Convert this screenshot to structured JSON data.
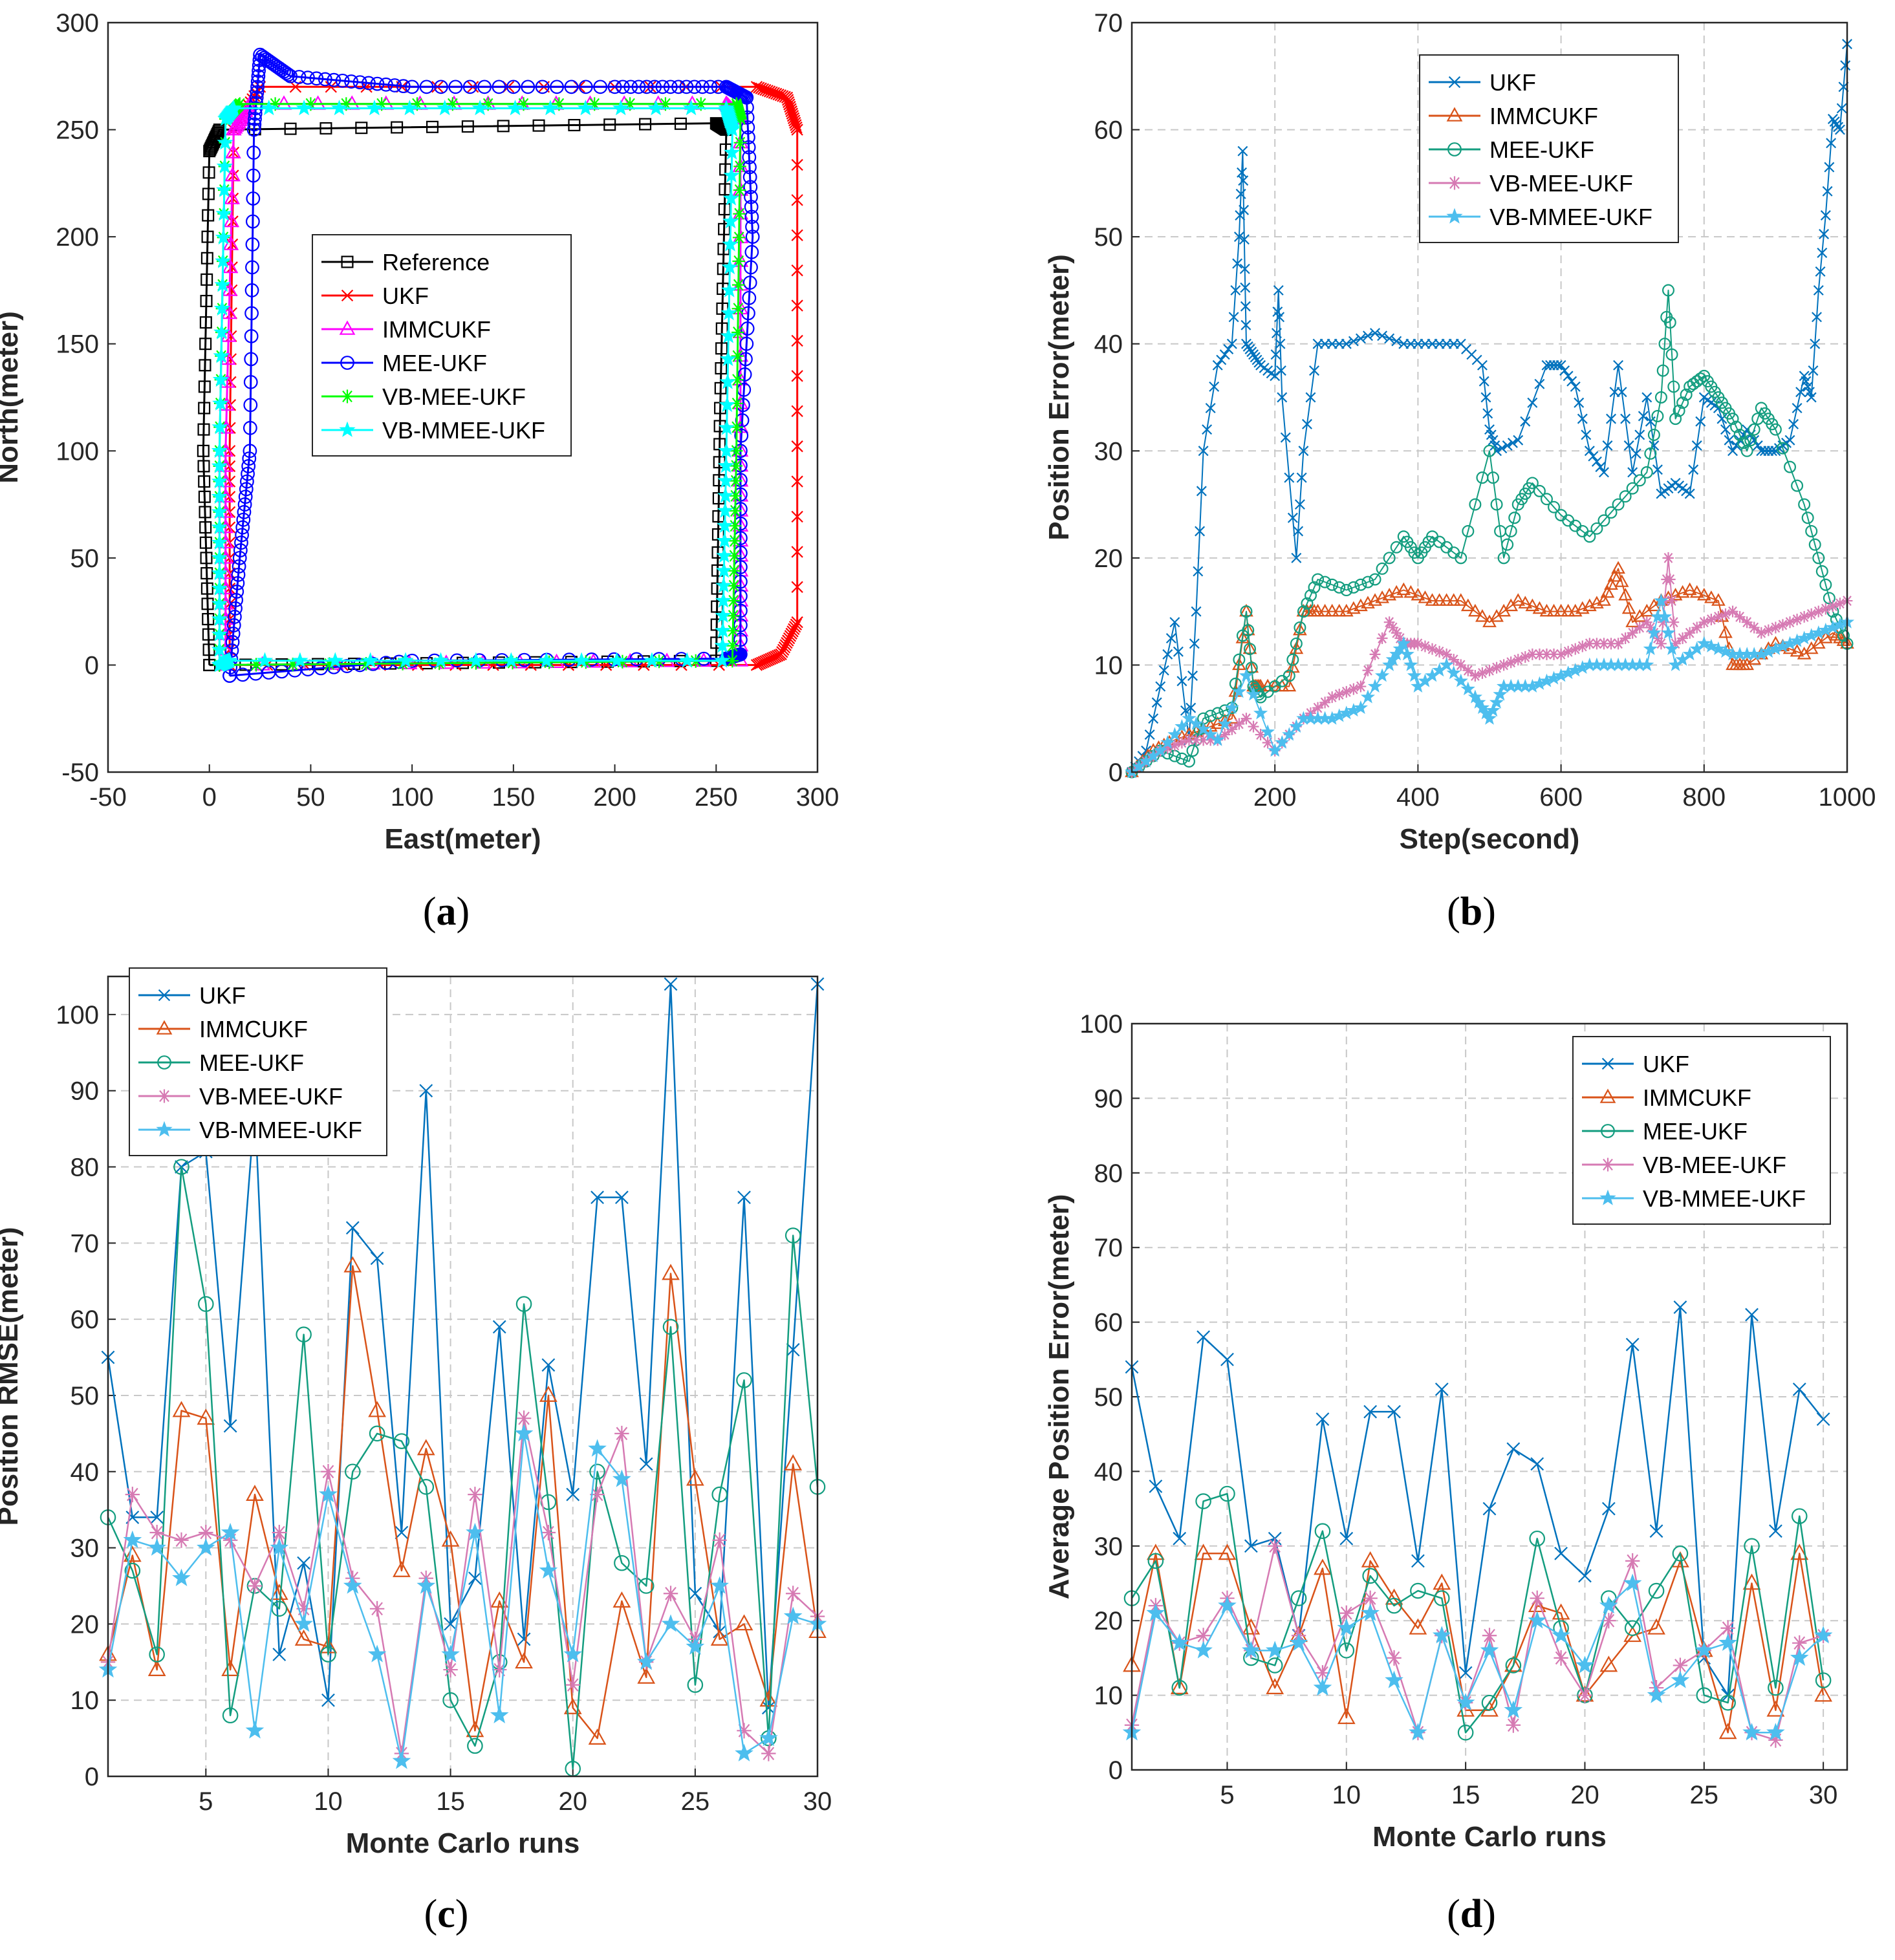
{
  "chart_data": [
    {
      "type": "line",
      "panel": "a",
      "xlabel": "East(meter)",
      "ylabel": "North(meter)",
      "xlim": [
        -50,
        300
      ],
      "ylim": [
        -50,
        300
      ],
      "xticks": [
        -50,
        0,
        50,
        100,
        150,
        200,
        250,
        300
      ],
      "yticks": [
        -50,
        0,
        50,
        100,
        150,
        200,
        250,
        300
      ],
      "grid": false,
      "legend_position": "center",
      "series": [
        {
          "name": "Reference",
          "color": "#000000",
          "marker": "square",
          "x": [
            0,
            -3,
            0,
            5,
            250,
            255,
            252,
            250,
            0
          ],
          "y": [
            0,
            100,
            240,
            250,
            253,
            250,
            120,
            2,
            0
          ]
        },
        {
          "name": "UKF",
          "color": "#ff0000",
          "marker": "x",
          "x": [
            10,
            10,
            12,
            25,
            270,
            285,
            290,
            290,
            282,
            270,
            10
          ],
          "y": [
            0,
            100,
            250,
            270,
            270,
            265,
            250,
            20,
            5,
            0,
            0
          ]
        },
        {
          "name": "IMMCUKF",
          "color": "#ff00ff",
          "marker": "triangle",
          "x": [
            8,
            8,
            12,
            20,
            255,
            262,
            262,
            262,
            8
          ],
          "y": [
            0,
            100,
            250,
            262,
            262,
            255,
            100,
            2,
            0
          ]
        },
        {
          "name": "MEE-UKF",
          "color": "#0000ff",
          "marker": "circle",
          "x": [
            10,
            15,
            20,
            22,
            25,
            40,
            100,
            200,
            255,
            265,
            268,
            262,
            262,
            255,
            100,
            10
          ],
          "y": [
            -5,
            50,
            100,
            250,
            285,
            275,
            270,
            270,
            270,
            265,
            200,
            100,
            5,
            3,
            2,
            -5
          ]
        },
        {
          "name": "VB-MEE-UKF",
          "color": "#00ff00",
          "marker": "star6",
          "x": [
            5,
            5,
            8,
            15,
            260,
            262,
            260,
            258,
            5
          ],
          "y": [
            0,
            100,
            255,
            262,
            262,
            255,
            100,
            2,
            0
          ]
        },
        {
          "name": "VB-MMEE-UKF",
          "color": "#00ffff",
          "marker": "pentagram",
          "x": [
            5,
            5,
            8,
            12,
            255,
            258,
            255,
            253,
            10,
            5
          ],
          "y": [
            0,
            100,
            255,
            260,
            260,
            250,
            100,
            2,
            2,
            0
          ]
        }
      ]
    },
    {
      "type": "line",
      "panel": "b",
      "xlabel": "Step(second)",
      "ylabel": "Position Error(meter)",
      "xlim": [
        0,
        1000
      ],
      "ylim": [
        0,
        70
      ],
      "xticks": [
        200,
        400,
        600,
        800,
        1000
      ],
      "yticks": [
        0,
        10,
        20,
        30,
        40,
        50,
        60,
        70
      ],
      "grid": true,
      "legend_position": "top-center",
      "series": [
        {
          "name": "UKF",
          "color": "#0072bd",
          "marker": "x",
          "x": [
            0,
            20,
            40,
            60,
            80,
            90,
            100,
            120,
            140,
            150,
            155,
            158,
            160,
            170,
            180,
            200,
            205,
            210,
            230,
            240,
            260,
            300,
            340,
            380,
            420,
            460,
            490,
            500,
            510,
            540,
            580,
            600,
            620,
            640,
            660,
            680,
            700,
            720,
            740,
            760,
            780,
            800,
            820,
            840,
            860,
            880,
            900,
            920,
            940,
            950,
            960,
            970,
            980,
            990,
            1000
          ],
          "y": [
            0,
            2,
            8,
            14,
            3,
            15,
            30,
            38,
            40,
            50,
            58,
            47,
            40,
            39,
            38,
            37,
            45,
            35,
            20,
            30,
            40,
            40,
            41,
            40,
            40,
            40,
            38,
            32,
            30,
            31,
            38,
            38,
            36,
            30,
            28,
            38,
            28,
            35,
            26,
            27,
            26,
            35,
            34,
            30,
            32,
            30,
            30,
            31,
            37,
            35,
            45,
            52,
            61,
            60,
            68
          ]
        },
        {
          "name": "IMMCUKF",
          "color": "#d95319",
          "marker": "triangle",
          "x": [
            0,
            30,
            60,
            100,
            140,
            160,
            170,
            180,
            220,
            240,
            260,
            300,
            340,
            380,
            420,
            460,
            500,
            540,
            580,
            620,
            660,
            680,
            700,
            740,
            780,
            820,
            840,
            860,
            900,
            940,
            980,
            1000
          ],
          "y": [
            0,
            2,
            3,
            4,
            5,
            15,
            8,
            8,
            8,
            15,
            15,
            15,
            16,
            17,
            16,
            16,
            14,
            16,
            15,
            15,
            16,
            19,
            14,
            16,
            17,
            16,
            10,
            10,
            12,
            11,
            13,
            12
          ]
        },
        {
          "name": "MEE-UKF",
          "color": "#139d7f",
          "marker": "circle",
          "x": [
            0,
            40,
            80,
            100,
            140,
            160,
            170,
            180,
            220,
            240,
            260,
            300,
            340,
            380,
            400,
            420,
            460,
            500,
            520,
            540,
            560,
            600,
            640,
            680,
            720,
            740,
            750,
            760,
            780,
            800,
            820,
            840,
            860,
            880,
            900,
            940,
            960,
            980,
            1000
          ],
          "y": [
            0,
            2,
            1,
            5,
            6,
            15,
            8,
            7,
            9,
            15,
            18,
            17,
            18,
            22,
            20,
            22,
            20,
            30,
            20,
            25,
            27,
            24,
            22,
            25,
            28,
            35,
            45,
            33,
            36,
            37,
            35,
            33,
            30,
            34,
            32,
            25,
            20,
            15,
            12
          ]
        },
        {
          "name": "VB-MEE-UKF",
          "color": "#d67ab3",
          "marker": "star6",
          "x": [
            0,
            40,
            80,
            120,
            160,
            200,
            240,
            280,
            320,
            360,
            380,
            400,
            440,
            480,
            520,
            560,
            600,
            640,
            680,
            720,
            740,
            750,
            760,
            800,
            840,
            880,
            920,
            960,
            1000
          ],
          "y": [
            0,
            2,
            3,
            3,
            5,
            2,
            5,
            7,
            8,
            14,
            12,
            12,
            11,
            9,
            10,
            11,
            11,
            12,
            12,
            14,
            12,
            20,
            12,
            14,
            15,
            13,
            14,
            15,
            16
          ]
        },
        {
          "name": "VB-MMEE-UKF",
          "color": "#4dbeee",
          "marker": "pentagram",
          "x": [
            0,
            40,
            80,
            120,
            160,
            200,
            240,
            280,
            320,
            360,
            380,
            400,
            440,
            480,
            500,
            520,
            560,
            600,
            640,
            680,
            720,
            740,
            760,
            800,
            840,
            880,
            920,
            960,
            1000
          ],
          "y": [
            0,
            2,
            5,
            3,
            9,
            2,
            5,
            5,
            6,
            10,
            12,
            8,
            10,
            7,
            5,
            8,
            8,
            9,
            10,
            10,
            10,
            16,
            10,
            12,
            11,
            11,
            12,
            13,
            14
          ]
        }
      ]
    },
    {
      "type": "line",
      "panel": "c",
      "xlabel": "Monte Carlo runs",
      "ylabel": "Position RMSE(meter)",
      "xlim": [
        1,
        30
      ],
      "ylim": [
        0,
        105
      ],
      "xticks": [
        5,
        10,
        15,
        20,
        25,
        30
      ],
      "yticks": [
        0,
        10,
        20,
        30,
        40,
        50,
        60,
        70,
        80,
        90,
        100
      ],
      "grid": true,
      "legend_position": "top-left",
      "x": [
        1,
        2,
        3,
        4,
        5,
        6,
        7,
        8,
        9,
        10,
        11,
        12,
        13,
        14,
        15,
        16,
        17,
        18,
        19,
        20,
        21,
        22,
        23,
        24,
        25,
        26,
        27,
        28,
        29,
        30
      ],
      "series": [
        {
          "name": "UKF",
          "color": "#0072bd",
          "marker": "x",
          "values": [
            55,
            34,
            34,
            80,
            82,
            46,
            88,
            16,
            28,
            10,
            72,
            68,
            32,
            90,
            20,
            26,
            59,
            18,
            54,
            37,
            76,
            76,
            41,
            104,
            24,
            19,
            76,
            9,
            56,
            104
          ]
        },
        {
          "name": "IMMCUKF",
          "color": "#d95319",
          "marker": "triangle",
          "values": [
            16,
            29,
            14,
            48,
            47,
            14,
            37,
            24,
            18,
            17,
            67,
            48,
            27,
            43,
            31,
            6,
            23,
            15,
            50,
            9,
            5,
            23,
            13,
            66,
            39,
            18,
            20,
            10,
            41,
            19
          ]
        },
        {
          "name": "MEE-UKF",
          "color": "#139d7f",
          "marker": "circle",
          "values": [
            34,
            27,
            16,
            80,
            62,
            8,
            25,
            22,
            58,
            16,
            40,
            45,
            44,
            38,
            10,
            4,
            15,
            62,
            36,
            1,
            40,
            28,
            25,
            59,
            12,
            37,
            52,
            5,
            71,
            38
          ]
        },
        {
          "name": "VB-MEE-UKF",
          "color": "#d67ab3",
          "marker": "star6",
          "values": [
            15,
            37,
            32,
            31,
            32,
            31,
            25,
            32,
            22,
            40,
            26,
            22,
            3,
            26,
            14,
            37,
            14,
            47,
            32,
            12,
            37,
            45,
            15,
            24,
            18,
            31,
            6,
            3,
            24,
            21
          ]
        },
        {
          "name": "VB-MMEE-UKF",
          "color": "#4dbeee",
          "marker": "pentagram",
          "values": [
            14,
            31,
            30,
            26,
            30,
            32,
            6,
            30,
            20,
            37,
            25,
            16,
            2,
            25,
            16,
            32,
            8,
            45,
            27,
            16,
            43,
            39,
            15,
            20,
            17,
            25,
            3,
            5,
            21,
            20
          ]
        }
      ]
    },
    {
      "type": "line",
      "panel": "d",
      "xlabel": "Monte Carlo runs",
      "ylabel": "Average Position Error(meter)",
      "xlim": [
        1,
        31
      ],
      "ylim": [
        0,
        100
      ],
      "xticks": [
        5,
        10,
        15,
        20,
        25,
        30
      ],
      "yticks": [
        0,
        10,
        20,
        30,
        40,
        50,
        60,
        70,
        80,
        90,
        100
      ],
      "grid": true,
      "legend_position": "top-right",
      "x": [
        1,
        2,
        3,
        4,
        5,
        6,
        7,
        8,
        9,
        10,
        11,
        12,
        13,
        14,
        15,
        16,
        17,
        18,
        19,
        20,
        21,
        22,
        23,
        24,
        25,
        26,
        27,
        28,
        29,
        30
      ],
      "series": [
        {
          "name": "UKF",
          "color": "#0072bd",
          "marker": "x",
          "values": [
            54,
            38,
            31,
            58,
            55,
            30,
            31,
            18,
            47,
            31,
            48,
            48,
            28,
            51,
            13,
            35,
            43,
            41,
            29,
            26,
            35,
            57,
            32,
            62,
            15,
            10,
            61,
            32,
            51,
            47
          ]
        },
        {
          "name": "IMMCUKF",
          "color": "#d95319",
          "marker": "triangle",
          "values": [
            14,
            29,
            11,
            29,
            29,
            19,
            11,
            18,
            27,
            7,
            28,
            23,
            19,
            25,
            8,
            8,
            14,
            22,
            21,
            10,
            14,
            18,
            19,
            28,
            16,
            5,
            25,
            8,
            29,
            10
          ]
        },
        {
          "name": "MEE-UKF",
          "color": "#139d7f",
          "marker": "circle",
          "values": [
            23,
            28,
            11,
            36,
            37,
            15,
            14,
            23,
            32,
            16,
            26,
            22,
            24,
            23,
            5,
            9,
            14,
            31,
            19,
            10,
            23,
            19,
            24,
            29,
            10,
            9,
            30,
            11,
            34,
            12
          ]
        },
        {
          "name": "VB-MEE-UKF",
          "color": "#d67ab3",
          "marker": "star6",
          "values": [
            6,
            22,
            17,
            18,
            23,
            16,
            30,
            18,
            13,
            21,
            23,
            15,
            5,
            18,
            9,
            18,
            6,
            23,
            15,
            10,
            20,
            28,
            11,
            14,
            16,
            19,
            5,
            4,
            17,
            18
          ]
        },
        {
          "name": "VB-MMEE-UKF",
          "color": "#4dbeee",
          "marker": "pentagram",
          "values": [
            5,
            21,
            17,
            16,
            22,
            16,
            16,
            17,
            11,
            19,
            21,
            12,
            5,
            18,
            9,
            16,
            8,
            20,
            18,
            14,
            22,
            25,
            10,
            12,
            16,
            17,
            5,
            5,
            15,
            18
          ]
        }
      ]
    }
  ],
  "panel_labels": {
    "a": {
      "open": "(",
      "letter": "a",
      "close": ")"
    },
    "b": {
      "open": "(",
      "letter": "b",
      "close": ")"
    },
    "c": {
      "open": "(",
      "letter": "c",
      "close": ")"
    },
    "d": {
      "open": "(",
      "letter": "d",
      "close": ")"
    }
  }
}
